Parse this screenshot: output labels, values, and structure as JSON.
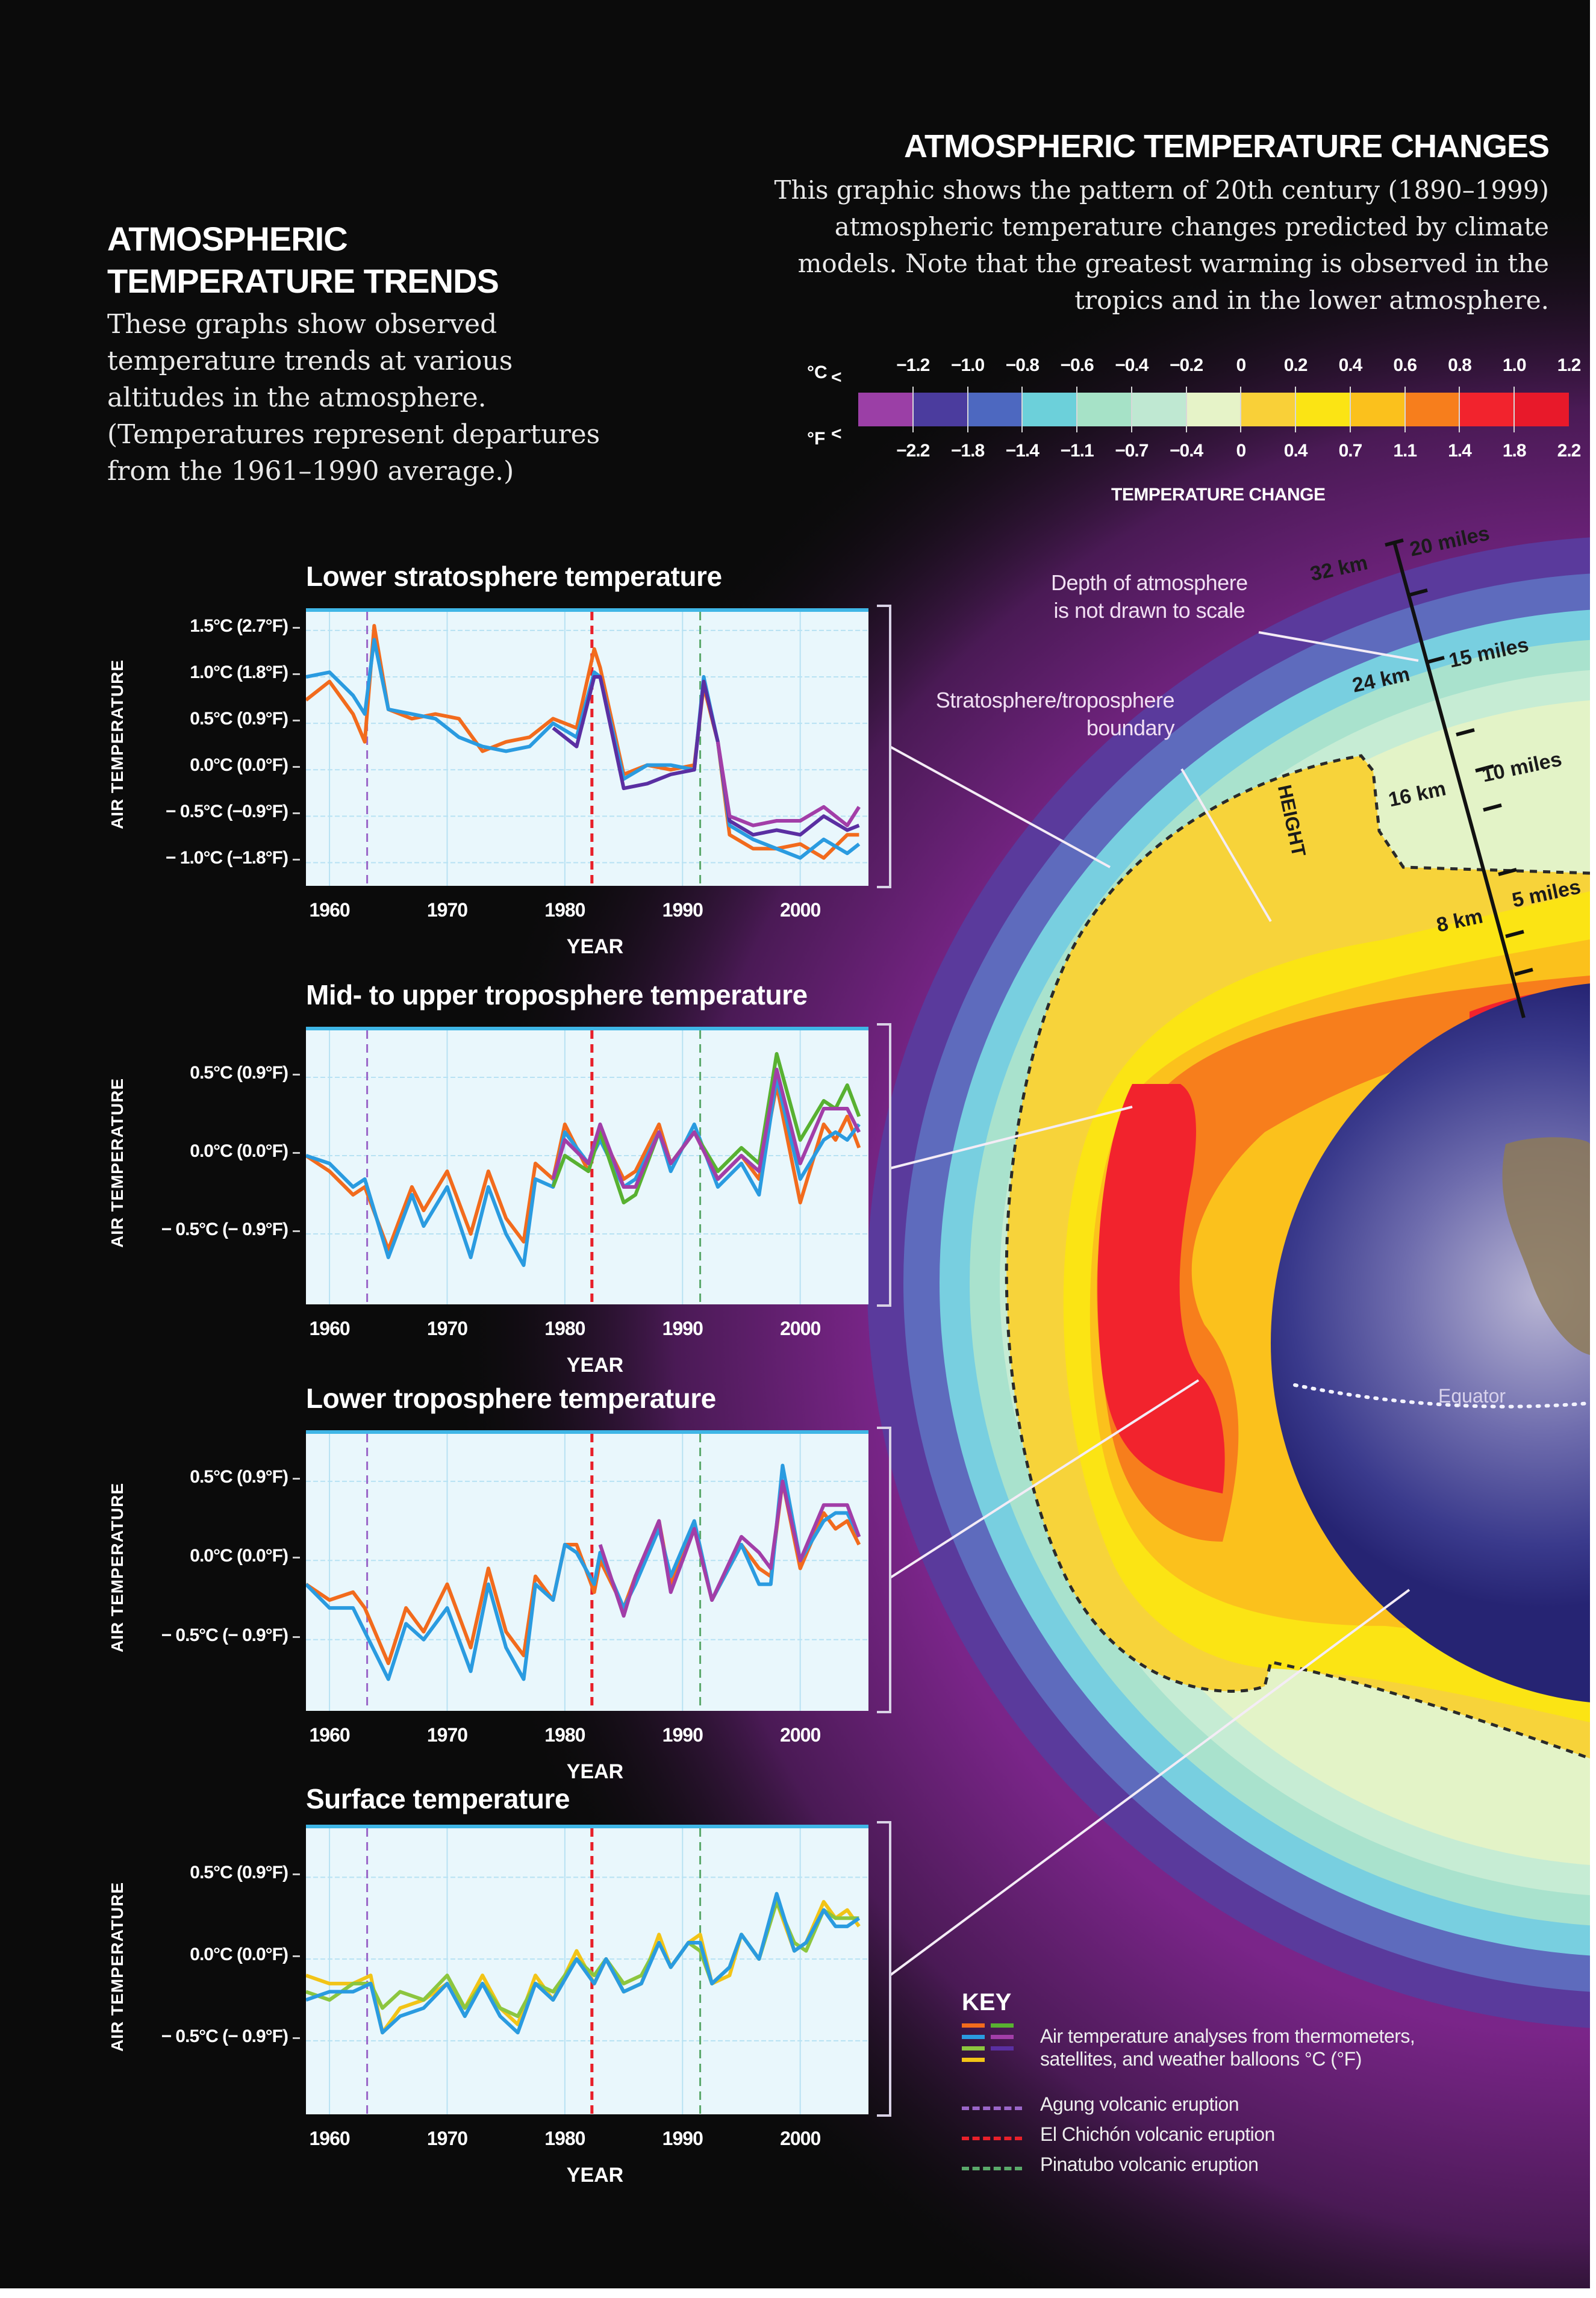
{
  "left_header": {
    "title_line1": "ATMOSPHERIC",
    "title_line2": "TEMPERATURE TRENDS",
    "desc_lines": [
      "These graphs show observed",
      "temperature trends at various",
      "altitudes in the atmosphere.",
      "(Temperatures represent departures",
      "from the 1961–1990 average.)"
    ]
  },
  "right_header": {
    "title": "ATMOSPHERIC TEMPERATURE CHANGES",
    "desc_lines": [
      "This graphic shows the pattern of 20th century (1890–1999)",
      "atmospheric temperature changes predicted by climate",
      "models. Note that the greatest warming is observed in the",
      "tropics and in the lower atmosphere."
    ]
  },
  "color_scale": {
    "unit_c": "°C",
    "unit_f": "°F",
    "lt_symbol": "<",
    "celsius_labels": [
      "−1.2",
      "−1.0",
      "−0.8",
      "−0.6",
      "−0.4",
      "−0.2",
      "0",
      "0.2",
      "0.4",
      "0.6",
      "0.8",
      "1.0",
      "1.2"
    ],
    "fahrenheit_labels": [
      "−2.2",
      "−1.8",
      "−1.4",
      "−1.1",
      "−0.7",
      "−0.4",
      "0",
      "0.4",
      "0.7",
      "1.1",
      "1.4",
      "1.8",
      "2.2"
    ],
    "colors": [
      "#9b3fa6",
      "#4b3c9e",
      "#4d68c0",
      "#6cd0da",
      "#a6e2c7",
      "#bfe8d2",
      "#e6f3c8",
      "#f9d038",
      "#fbe414",
      "#fbc11c",
      "#f77e1c",
      "#f2232d",
      "#e8192a"
    ],
    "label": "TEMPERATURE CHANGE"
  },
  "diagram": {
    "annotation_depth": [
      "Depth of atmosphere",
      "is not drawn to scale"
    ],
    "annotation_boundary": [
      "Stratosphere/troposphere",
      "boundary"
    ],
    "height_axis_label": "HEIGHT",
    "height_ticks": [
      {
        "km": "32 km",
        "miles": "20 miles"
      },
      {
        "km": "24 km",
        "miles": "15 miles"
      },
      {
        "km": "16 km",
        "miles": "10 miles"
      },
      {
        "km": "8 km",
        "miles": "5 miles"
      }
    ],
    "equator_label": "Equator"
  },
  "axis_common": {
    "ylabel": "AIR TEMPERATURE",
    "xlabel": "YEAR",
    "xticks": [
      "1960",
      "1970",
      "1980",
      "1990",
      "2000"
    ]
  },
  "charts": [
    {
      "title": "Lower stratosphere temperature",
      "yticks": [
        "1.5°C (2.7°F)",
        "1.0°C (1.8°F)",
        "0.5°C (0.9°F)",
        "0.0°C (0.0°F)",
        "− 0.5°C (−0.9°F)",
        "− 1.0°C (−1.8°F)"
      ]
    },
    {
      "title": "Mid- to upper troposphere temperature",
      "yticks": [
        "0.5°C (0.9°F)",
        "0.0°C (0.0°F)",
        "− 0.5°C (− 0.9°F)"
      ]
    },
    {
      "title": "Lower troposphere temperature",
      "yticks": [
        "0.5°C (0.9°F)",
        "0.0°C (0.0°F)",
        "− 0.5°C (− 0.9°F)"
      ]
    },
    {
      "title": "Surface temperature",
      "yticks": [
        "0.5°C (0.9°F)",
        "0.0°C (0.0°F)",
        "− 0.5°C (− 0.9°F)"
      ]
    }
  ],
  "key": {
    "title": "KEY",
    "series_swatches": [
      "#f26b1d",
      "#2a9be0",
      "#8cc63f",
      "#f2c417",
      "#58b131",
      "#a23ea8",
      "#5a2fa2"
    ],
    "series_text_line1": "Air temperature analyses from thermometers,",
    "series_text_line2": "satellites, and weather balloons °C (°F)",
    "events": [
      {
        "label": "Agung volcanic eruption",
        "color": "#9a66c8"
      },
      {
        "label": "El Chichón volcanic eruption",
        "color": "#e8202a"
      },
      {
        "label": "Pinatubo volcanic eruption",
        "color": "#5aa86a"
      }
    ]
  },
  "chart_data": [
    {
      "type": "line",
      "title": "Lower stratosphere temperature",
      "xlabel": "YEAR",
      "ylabel": "AIR TEMPERATURE",
      "xlim": [
        1958,
        2005
      ],
      "ylim": [
        -1.25,
        1.7
      ],
      "yticks": [
        1.5,
        1.0,
        0.5,
        0.0,
        -0.5,
        -1.0
      ],
      "grid": true,
      "vlines": [
        {
          "x": 1963.2,
          "label": "Agung"
        },
        {
          "x": 1982.3,
          "label": "El Chichón"
        },
        {
          "x": 1991.5,
          "label": "Pinatubo"
        }
      ],
      "x": [
        1958,
        1960,
        1962,
        1963,
        1963.8,
        1965,
        1967,
        1969,
        1971,
        1973,
        1975,
        1977,
        1979,
        1981,
        1982.5,
        1983,
        1985,
        1987,
        1989,
        1991,
        1991.8,
        1993,
        1994,
        1996,
        1998,
        2000,
        2002,
        2004,
        2005
      ],
      "series": [
        {
          "name": "orange",
          "color": "#f26b1d",
          "values": [
            0.75,
            0.95,
            0.6,
            0.3,
            1.55,
            0.65,
            0.55,
            0.6,
            0.55,
            0.2,
            0.3,
            0.35,
            0.55,
            0.45,
            1.3,
            1.1,
            -0.05,
            0.05,
            0.0,
            0.05,
            0.9,
            0.3,
            -0.7,
            -0.85,
            -0.85,
            -0.8,
            -0.95,
            -0.7,
            -0.7
          ]
        },
        {
          "name": "blue",
          "color": "#2a9be0",
          "values": [
            1.0,
            1.05,
            0.8,
            0.6,
            1.4,
            0.65,
            0.6,
            0.55,
            0.35,
            0.25,
            0.2,
            0.25,
            0.5,
            0.35,
            1.05,
            1.0,
            -0.1,
            0.05,
            0.05,
            0.0,
            1.0,
            0.3,
            -0.6,
            -0.75,
            -0.85,
            -0.95,
            -0.75,
            -0.9,
            -0.8
          ]
        },
        {
          "name": "indigo",
          "color": "#5a2fa2",
          "values": [
            null,
            null,
            null,
            null,
            null,
            null,
            null,
            null,
            null,
            null,
            null,
            null,
            0.45,
            0.25,
            1.0,
            1.0,
            -0.2,
            -0.15,
            -0.05,
            0.0,
            0.95,
            0.3,
            -0.55,
            -0.7,
            -0.65,
            -0.7,
            -0.5,
            -0.65,
            -0.6
          ]
        },
        {
          "name": "purple",
          "color": "#a23ea8",
          "values": [
            null,
            null,
            null,
            null,
            null,
            null,
            null,
            null,
            null,
            null,
            null,
            null,
            null,
            null,
            null,
            null,
            null,
            null,
            null,
            null,
            null,
            0.3,
            -0.5,
            -0.6,
            -0.55,
            -0.55,
            -0.4,
            -0.6,
            -0.4
          ]
        }
      ]
    },
    {
      "type": "line",
      "title": "Mid- to upper troposphere temperature",
      "xlabel": "YEAR",
      "ylabel": "AIR TEMPERATURE",
      "xlim": [
        1958,
        2005
      ],
      "ylim": [
        -0.95,
        0.8
      ],
      "yticks": [
        0.5,
        0.0,
        -0.5
      ],
      "grid": true,
      "vlines": [
        {
          "x": 1963.2,
          "label": "Agung"
        },
        {
          "x": 1982.3,
          "label": "El Chichón"
        },
        {
          "x": 1991.5,
          "label": "Pinatubo"
        }
      ],
      "x": [
        1958,
        1960,
        1962,
        1963,
        1965,
        1967,
        1968,
        1970,
        1972,
        1973.5,
        1975,
        1976.5,
        1977.5,
        1979,
        1980,
        1982,
        1983,
        1985,
        1986,
        1988,
        1989,
        1991,
        1993,
        1995,
        1996.5,
        1998,
        2000,
        2002,
        2003,
        2004,
        2005
      ],
      "series": [
        {
          "name": "orange",
          "color": "#f26b1d",
          "values": [
            0.0,
            -0.1,
            -0.25,
            -0.2,
            -0.6,
            -0.2,
            -0.35,
            -0.1,
            -0.5,
            -0.1,
            -0.4,
            -0.55,
            -0.05,
            -0.15,
            0.2,
            -0.1,
            0.15,
            -0.15,
            -0.1,
            0.2,
            -0.05,
            0.15,
            -0.15,
            0.0,
            -0.15,
            0.45,
            -0.3,
            0.2,
            0.1,
            0.25,
            0.05
          ]
        },
        {
          "name": "blue",
          "color": "#2a9be0",
          "values": [
            0.0,
            -0.05,
            -0.2,
            -0.15,
            -0.65,
            -0.25,
            -0.45,
            -0.2,
            -0.65,
            -0.2,
            -0.5,
            -0.7,
            -0.15,
            -0.2,
            0.15,
            -0.05,
            0.1,
            -0.2,
            -0.15,
            0.15,
            -0.1,
            0.2,
            -0.2,
            -0.05,
            -0.25,
            0.5,
            -0.15,
            0.1,
            0.15,
            0.1,
            0.2
          ]
        },
        {
          "name": "green",
          "color": "#58b131",
          "values": [
            null,
            null,
            null,
            null,
            null,
            null,
            null,
            null,
            null,
            null,
            null,
            null,
            null,
            -0.2,
            0.0,
            -0.1,
            0.15,
            -0.3,
            -0.25,
            0.15,
            -0.05,
            0.15,
            -0.1,
            0.05,
            -0.05,
            0.65,
            0.1,
            0.35,
            0.3,
            0.45,
            0.25
          ]
        },
        {
          "name": "purple",
          "color": "#a23ea8",
          "values": [
            null,
            null,
            null,
            null,
            null,
            null,
            null,
            null,
            null,
            null,
            null,
            null,
            null,
            -0.15,
            0.1,
            -0.05,
            0.2,
            -0.2,
            -0.2,
            0.15,
            -0.05,
            0.15,
            -0.15,
            0.0,
            -0.1,
            0.55,
            -0.05,
            0.3,
            0.3,
            0.3,
            0.15
          ]
        }
      ]
    },
    {
      "type": "line",
      "title": "Lower troposphere temperature",
      "xlabel": "YEAR",
      "ylabel": "AIR TEMPERATURE",
      "xlim": [
        1958,
        2005
      ],
      "ylim": [
        -0.95,
        0.8
      ],
      "yticks": [
        0.5,
        0.0,
        -0.5
      ],
      "grid": true,
      "vlines": [
        {
          "x": 1963.2,
          "label": "Agung"
        },
        {
          "x": 1982.3,
          "label": "El Chichón"
        },
        {
          "x": 1991.5,
          "label": "Pinatubo"
        }
      ],
      "x": [
        1958,
        1960,
        1962,
        1963,
        1965,
        1966.5,
        1968,
        1970,
        1972,
        1973.5,
        1975,
        1976.5,
        1977.5,
        1979,
        1980,
        1981,
        1982.5,
        1983,
        1985,
        1986,
        1988,
        1989,
        1991,
        1992.5,
        1995,
        1996.5,
        1997.5,
        1998.5,
        2000,
        2002,
        2003,
        2004,
        2005
      ],
      "series": [
        {
          "name": "orange",
          "color": "#f26b1d",
          "values": [
            -0.15,
            -0.25,
            -0.2,
            -0.3,
            -0.65,
            -0.3,
            -0.45,
            -0.15,
            -0.55,
            -0.05,
            -0.45,
            -0.6,
            -0.1,
            -0.25,
            0.1,
            0.1,
            -0.2,
            0.0,
            -0.3,
            -0.1,
            0.25,
            -0.15,
            0.2,
            -0.25,
            0.1,
            -0.05,
            -0.1,
            0.5,
            -0.05,
            0.3,
            0.2,
            0.25,
            0.1
          ]
        },
        {
          "name": "blue",
          "color": "#2a9be0",
          "values": [
            -0.15,
            -0.3,
            -0.3,
            -0.45,
            -0.75,
            -0.4,
            -0.5,
            -0.3,
            -0.7,
            -0.15,
            -0.55,
            -0.75,
            -0.15,
            -0.25,
            0.1,
            0.05,
            -0.15,
            0.05,
            -0.3,
            -0.15,
            0.2,
            -0.1,
            0.25,
            -0.25,
            0.1,
            -0.15,
            -0.15,
            0.6,
            0.0,
            0.25,
            0.3,
            0.3,
            0.15
          ]
        },
        {
          "name": "purple",
          "color": "#a23ea8",
          "values": [
            null,
            null,
            null,
            null,
            null,
            null,
            null,
            null,
            null,
            null,
            null,
            null,
            null,
            null,
            null,
            null,
            null,
            0.1,
            -0.35,
            -0.1,
            0.25,
            -0.2,
            0.2,
            -0.25,
            0.15,
            0.05,
            -0.05,
            0.5,
            0.0,
            0.35,
            0.35,
            0.35,
            0.15
          ]
        }
      ]
    },
    {
      "type": "line",
      "title": "Surface temperature",
      "xlabel": "YEAR",
      "ylabel": "AIR TEMPERATURE",
      "xlim": [
        1958,
        2005
      ],
      "ylim": [
        -0.95,
        0.8
      ],
      "yticks": [
        0.5,
        0.0,
        -0.5
      ],
      "grid": true,
      "vlines": [
        {
          "x": 1963.2,
          "label": "Agung"
        },
        {
          "x": 1982.3,
          "label": "El Chichón"
        },
        {
          "x": 1991.5,
          "label": "Pinatubo"
        }
      ],
      "x": [
        1958,
        1960,
        1962,
        1963.5,
        1964.5,
        1966,
        1968,
        1970,
        1971.5,
        1973,
        1974.5,
        1976,
        1977.5,
        1979,
        1981,
        1982.5,
        1983.5,
        1985,
        1986.5,
        1988,
        1989,
        1990.5,
        1991.5,
        1992.5,
        1994,
        1995,
        1996.5,
        1998,
        1999.5,
        2000.5,
        2002,
        2003,
        2004,
        2005
      ],
      "series": [
        {
          "name": "yellow",
          "color": "#f2c417",
          "values": [
            -0.1,
            -0.15,
            -0.15,
            -0.1,
            -0.45,
            -0.3,
            -0.25,
            -0.15,
            -0.3,
            -0.1,
            -0.3,
            -0.4,
            -0.1,
            -0.25,
            0.05,
            -0.15,
            0.0,
            -0.2,
            -0.15,
            0.15,
            -0.05,
            0.1,
            0.15,
            -0.15,
            -0.1,
            0.15,
            0.0,
            0.35,
            0.05,
            0.1,
            0.35,
            0.25,
            0.3,
            0.2
          ]
        },
        {
          "name": "green",
          "color": "#8cc63f",
          "values": [
            -0.2,
            -0.25,
            -0.15,
            -0.15,
            -0.3,
            -0.2,
            -0.25,
            -0.1,
            -0.3,
            -0.15,
            -0.3,
            -0.35,
            -0.15,
            -0.2,
            0.0,
            -0.1,
            0.0,
            -0.15,
            -0.1,
            0.1,
            -0.05,
            0.1,
            0.05,
            -0.15,
            -0.05,
            0.15,
            0.0,
            0.35,
            0.1,
            0.05,
            0.3,
            0.25,
            0.25,
            0.25
          ]
        },
        {
          "name": "blue",
          "color": "#2a9be0",
          "values": [
            -0.25,
            -0.2,
            -0.2,
            -0.15,
            -0.45,
            -0.35,
            -0.3,
            -0.15,
            -0.35,
            -0.15,
            -0.35,
            -0.45,
            -0.15,
            -0.25,
            0.0,
            -0.15,
            0.0,
            -0.2,
            -0.15,
            0.1,
            -0.05,
            0.1,
            0.1,
            -0.15,
            -0.05,
            0.15,
            0.0,
            0.4,
            0.05,
            0.1,
            0.3,
            0.2,
            0.2,
            0.25
          ]
        }
      ]
    }
  ]
}
